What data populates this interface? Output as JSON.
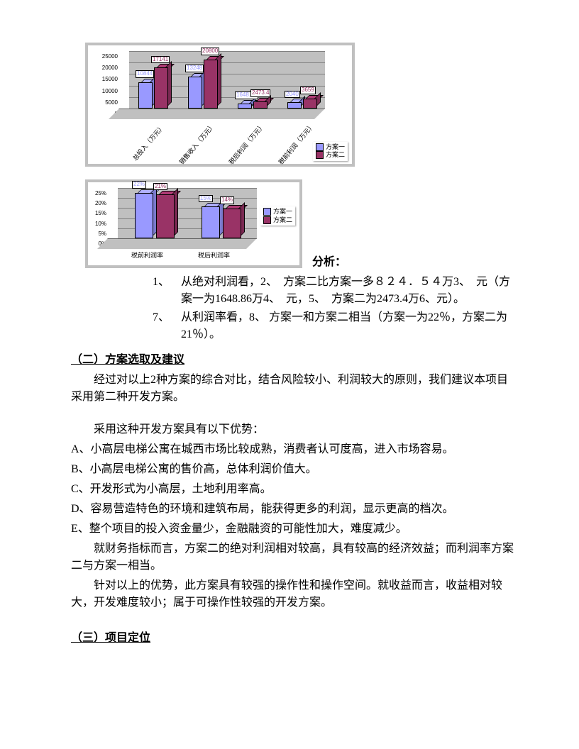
{
  "chart1": {
    "type": "bar3d",
    "series": [
      "方案一",
      "方案二"
    ],
    "series_colors": [
      "#9999ff",
      "#993366"
    ],
    "categories": [
      "总投入（万元）",
      "销售收入（万元）",
      "税后利润（万元）",
      "税前利润（万元）"
    ],
    "values_s1": [
      10844,
      13248,
      1648.86,
      2040
    ],
    "values_s2": [
      17141,
      20800,
      2473.4,
      3659
    ],
    "labels_s1": [
      "10844",
      "13248",
      "1648.86",
      "2040"
    ],
    "labels_s2": [
      "17141",
      "20800",
      "2473.4",
      "3659"
    ],
    "ylim": [
      0,
      25000
    ],
    "ytick_step": 5000,
    "yticks": [
      "0",
      "5000",
      "10000",
      "15000",
      "20000",
      "25000"
    ],
    "background_color": "#c0c0c0",
    "plot_bg": "#c0c0c0",
    "grid_color": "#808080"
  },
  "chart2": {
    "type": "bar3d",
    "series": [
      "方案一",
      "方案二"
    ],
    "series_colors": [
      "#9999ff",
      "#993366"
    ],
    "categories": [
      "税前利润率",
      "税后利润率"
    ],
    "values_s1": [
      22,
      15
    ],
    "values_s2": [
      21,
      14
    ],
    "labels_s1": [
      "22%",
      "15%"
    ],
    "labels_s2": [
      "21%",
      "14%"
    ],
    "ylim": [
      0,
      25
    ],
    "ytick_step": 5,
    "yticks": [
      "0%",
      "5%",
      "10%",
      "15%",
      "20%",
      "25%"
    ],
    "background_color": "#c0c0c0",
    "plot_bg": "#c0c0c0",
    "grid_color": "#808080"
  },
  "text": {
    "analysis_title": "分析：",
    "list1_n1": "1、",
    "list1_t1": "从绝对利润看，2、　方案二比方案一多８２４．５４万3、　元（方案一为1648.86万4、　元，5、　方案二为2473.4万6、元）。",
    "list1_n7": "7、",
    "list1_t7": "从利润率看，8、 方案一和方案二相当（方案一为22％，方案二为21％）。",
    "h2": "（二）方案选取及建议",
    "p1": "经过对以上2种方案的综合对比，结合风险较小、利润较大的原则，我们建议本项目采用第二种开发方案。",
    "p2": "采用这种开发方案具有以下优势：",
    "pa": "A、小高层电梯公寓在城西市场比较成熟，消费者认可度高，进入市场容易。",
    "pb": "B、小高层电梯公寓的售价高，总体利润价值大。",
    "pc": "C、开发形式为小高层，土地利用率高。",
    "pd": "D、容易营造特色的环境和建筑布局，能获得更多的利润，显示更高的档次。",
    "pe": "E、整个项目的投入资金量少，金融融资的可能性加大，难度减少。",
    "p3": "就财务指标而言，方案二的绝对利润相对较高，具有较高的经济效益；而利润率方案二与方案一相当。",
    "p4": "针对以上的优势，此方案具有较强的操作性和操作空间。就收益而言，收益相对较大，开发难度较小；属于可操作性较强的开发方案。",
    "h3": "（三）项目定位"
  }
}
